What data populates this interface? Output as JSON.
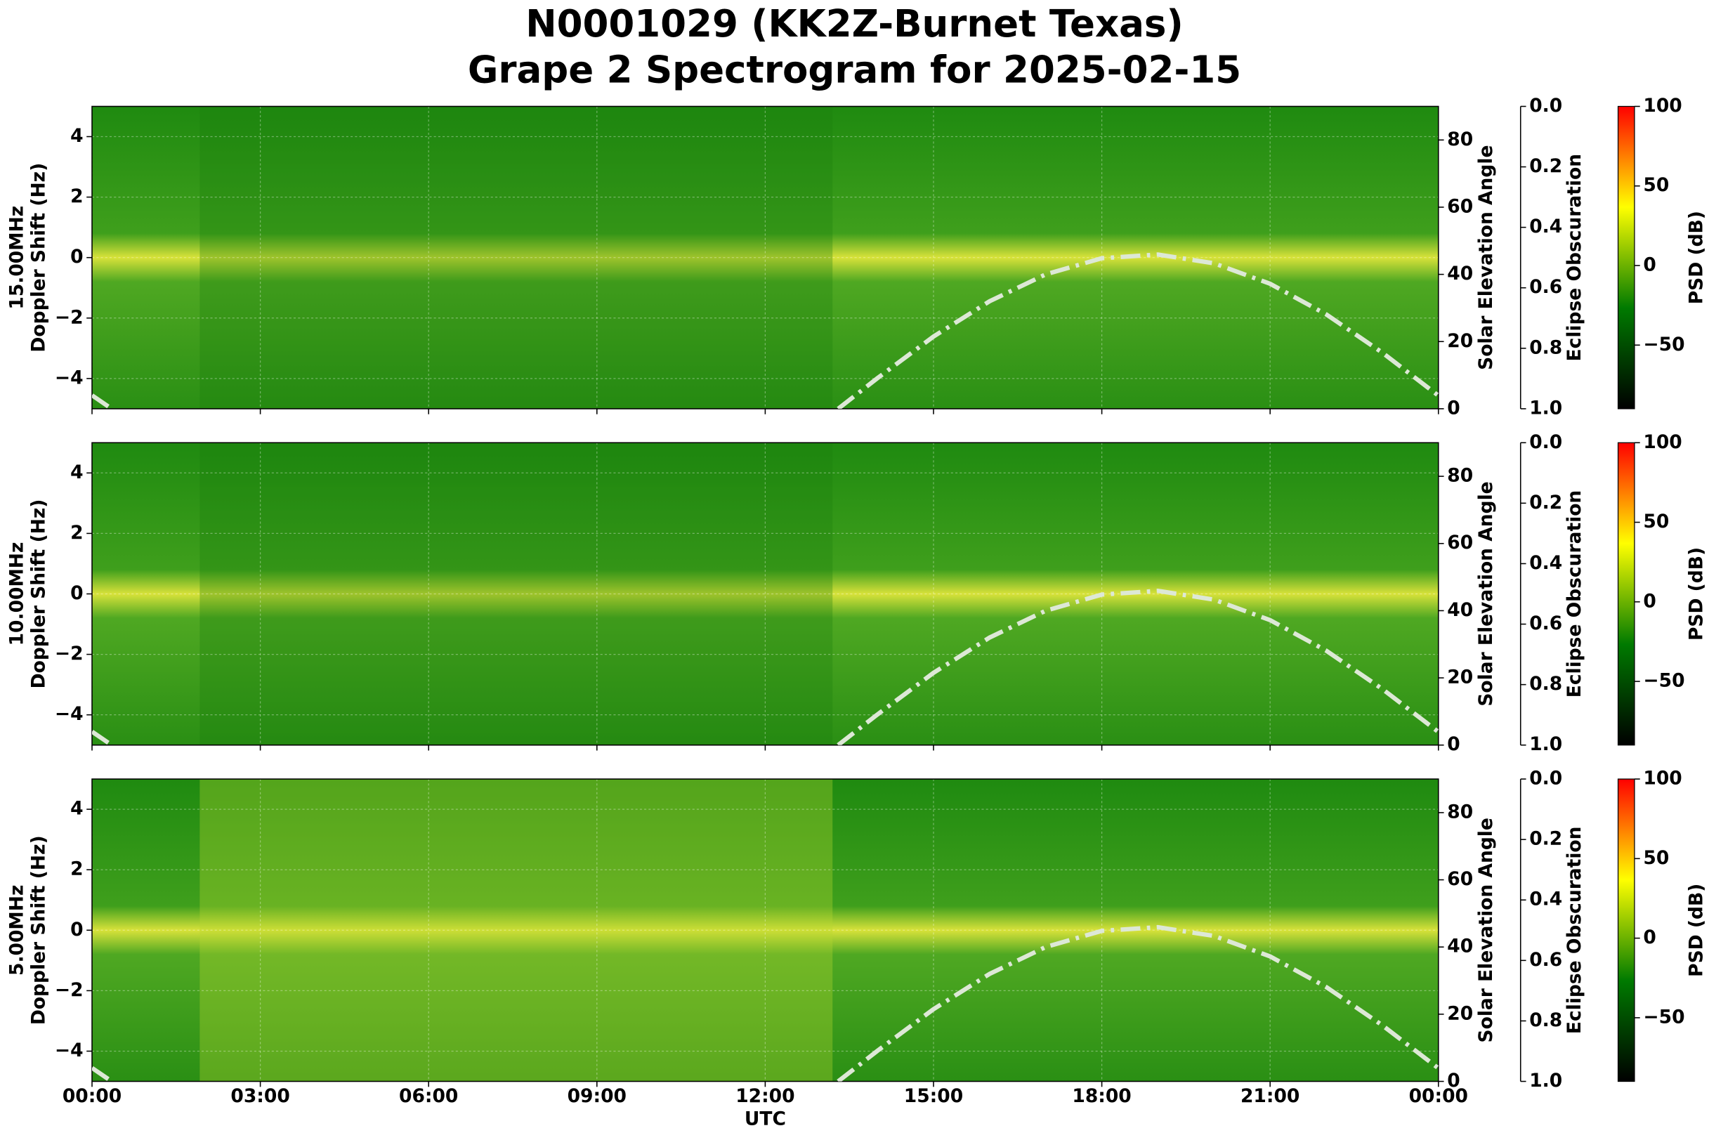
{
  "title": [
    "N0001029 (KK2Z-Burnet Texas)",
    "Grape 2 Spectrogram for 2025-02-15"
  ],
  "x_axis": {
    "xlabel": "UTC",
    "xlim": [
      0,
      24
    ],
    "xticks": [
      {
        "value": 0,
        "label": "00:00"
      },
      {
        "value": 3,
        "label": "03:00"
      },
      {
        "value": 6,
        "label": "06:00"
      },
      {
        "value": 9,
        "label": "09:00"
      },
      {
        "value": 12,
        "label": "12:00"
      },
      {
        "value": 15,
        "label": "15:00"
      },
      {
        "value": 18,
        "label": "18:00"
      },
      {
        "value": 21,
        "label": "21:00"
      },
      {
        "value": 24,
        "label": "00:00"
      }
    ]
  },
  "chart_data": [
    {
      "type": "line",
      "ylabel": [
        "15.00MHz",
        "Doppler Shift (Hz)"
      ],
      "ylim": [
        -5,
        5
      ],
      "yticks": [
        {
          "value": -4,
          "label": "−4"
        },
        {
          "value": -2,
          "label": "−2"
        },
        0,
        2,
        4
      ],
      "y2label": "Solar Elevation Angle",
      "y2lim": [
        0,
        90
      ],
      "y2ticks": [
        0,
        20,
        40,
        60,
        80
      ],
      "eclipse_label": "Eclipse Obscuration",
      "eclipse_lim": [
        1,
        0
      ],
      "eclipse_ticks": [
        {
          "value": 0,
          "label": "0.0"
        },
        {
          "value": 0.2,
          "label": "0.2"
        },
        {
          "value": 0.4,
          "label": "0.4"
        },
        {
          "value": 0.6,
          "label": "0.6"
        },
        {
          "value": 0.8,
          "label": "0.8"
        },
        {
          "value": 1,
          "label": "1.0"
        }
      ],
      "colorbar_label": "PSD (dB)",
      "clim": [
        -90,
        100
      ],
      "cticks": [
        {
          "value": -50,
          "label": "−50"
        },
        0,
        50,
        100
      ],
      "colormap": [
        "#000000",
        "#007a00",
        "#ffff00",
        "#ff0000"
      ],
      "grid": true,
      "x": [
        0,
        0.35,
        1,
        13.3,
        14,
        15,
        16,
        17,
        18,
        19,
        20,
        21,
        22,
        23,
        24
      ],
      "series": [
        {
          "color": "#dde8d6",
          "axis": "y2",
          "values": [
            4,
            0,
            null,
            0,
            9.1,
            21.5,
            32,
            40,
            44.8,
            45.9,
            43.3,
            37.2,
            28.1,
            16.7,
            3.9
          ]
        }
      ]
    },
    {
      "type": "line",
      "ylabel": [
        "10.00MHz",
        "Doppler Shift (Hz)"
      ],
      "ylim": [
        -5,
        5
      ],
      "yticks": [
        {
          "value": -4,
          "label": "−4"
        },
        {
          "value": -2,
          "label": "−2"
        },
        0,
        2,
        4
      ],
      "y2label": "Solar Elevation Angle",
      "y2lim": [
        0,
        90
      ],
      "y2ticks": [
        0,
        20,
        40,
        60,
        80
      ],
      "eclipse_label": "Eclipse Obscuration",
      "eclipse_lim": [
        1,
        0
      ],
      "eclipse_ticks": [
        {
          "value": 0,
          "label": "0.0"
        },
        {
          "value": 0.2,
          "label": "0.2"
        },
        {
          "value": 0.4,
          "label": "0.4"
        },
        {
          "value": 0.6,
          "label": "0.6"
        },
        {
          "value": 0.8,
          "label": "0.8"
        },
        {
          "value": 1,
          "label": "1.0"
        }
      ],
      "colorbar_label": "PSD (dB)",
      "clim": [
        -90,
        100
      ],
      "cticks": [
        {
          "value": -50,
          "label": "−50"
        },
        0,
        50,
        100
      ],
      "colormap": [
        "#000000",
        "#007a00",
        "#ffff00",
        "#ff0000"
      ],
      "grid": true,
      "x": [
        0,
        0.35,
        1,
        13.3,
        14,
        15,
        16,
        17,
        18,
        19,
        20,
        21,
        22,
        23,
        24
      ],
      "series": [
        {
          "color": "#dde8d6",
          "axis": "y2",
          "values": [
            4,
            0,
            null,
            0,
            9.1,
            21.5,
            32,
            40,
            44.8,
            45.9,
            43.3,
            37.2,
            28.1,
            16.7,
            3.9
          ]
        }
      ]
    },
    {
      "type": "line",
      "ylabel": [
        "5.00MHz",
        "Doppler Shift (Hz)"
      ],
      "ylim": [
        -5,
        5
      ],
      "yticks": [
        {
          "value": -4,
          "label": "−4"
        },
        {
          "value": -2,
          "label": "−2"
        },
        0,
        2,
        4
      ],
      "y2label": "Solar Elevation Angle",
      "y2lim": [
        0,
        90
      ],
      "y2ticks": [
        0,
        20,
        40,
        60,
        80
      ],
      "eclipse_label": "Eclipse Obscuration",
      "eclipse_lim": [
        1,
        0
      ],
      "eclipse_ticks": [
        {
          "value": 0,
          "label": "0.0"
        },
        {
          "value": 0.2,
          "label": "0.2"
        },
        {
          "value": 0.4,
          "label": "0.4"
        },
        {
          "value": 0.6,
          "label": "0.6"
        },
        {
          "value": 0.8,
          "label": "0.8"
        },
        {
          "value": 1,
          "label": "1.0"
        }
      ],
      "colorbar_label": "PSD (dB)",
      "clim": [
        -90,
        100
      ],
      "cticks": [
        {
          "value": -50,
          "label": "−50"
        },
        0,
        50,
        100
      ],
      "colormap": [
        "#000000",
        "#007a00",
        "#ffff00",
        "#ff0000"
      ],
      "grid": true,
      "x": [
        0,
        0.35,
        1,
        13.3,
        14,
        15,
        16,
        17,
        18,
        19,
        20,
        21,
        22,
        23,
        24
      ],
      "series": [
        {
          "color": "#dde8d6",
          "axis": "y2",
          "values": [
            4,
            0,
            null,
            0,
            9.1,
            21.5,
            32,
            40,
            44.8,
            45.9,
            43.3,
            37.2,
            28.1,
            16.7,
            3.9
          ]
        }
      ]
    }
  ]
}
